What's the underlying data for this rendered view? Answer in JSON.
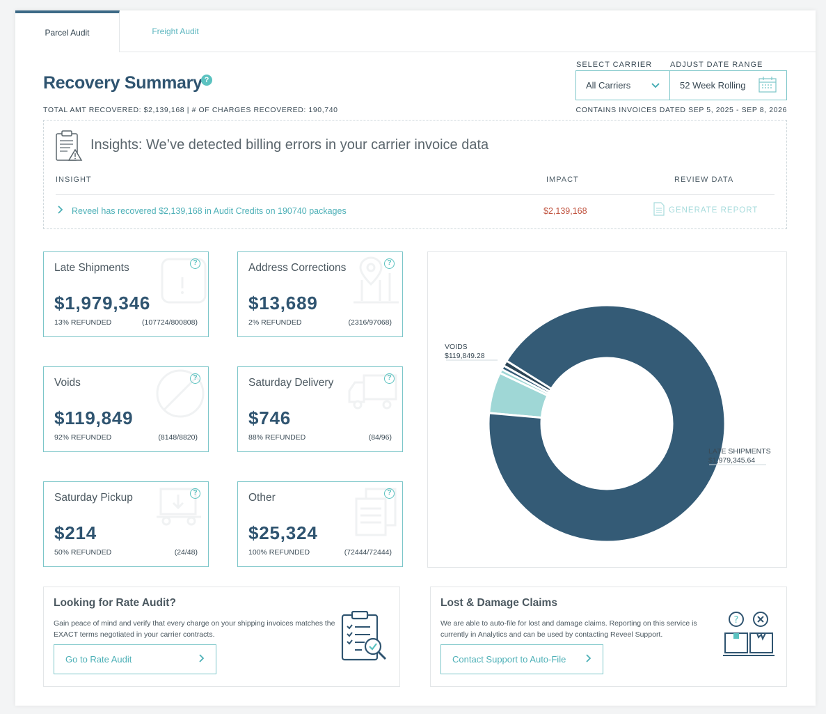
{
  "tabs": [
    {
      "label": "Parcel Audit",
      "active": true
    },
    {
      "label": "Freight Audit",
      "active": false
    }
  ],
  "header": {
    "title": "Recovery Summary",
    "help": "?",
    "carrier_label": "SELECT CARRIER",
    "carrier_value": "All Carriers",
    "range_label": "ADJUST DATE RANGE",
    "range_value": "52 Week Rolling",
    "totals": "TOTAL AMT RECOVERED: $2,139,168 | # OF CHARGES RECOVERED: 190,740",
    "dates": "CONTAINS INVOICES DATED SEP 5, 2025 - SEP 8, 2026"
  },
  "insights": {
    "title": "Insights: We’ve detected billing errors in your carrier invoice data",
    "col_insight": "INSIGHT",
    "col_impact": "IMPACT",
    "col_review": "REVIEW DATA",
    "row_text": "Reveel has recovered $2,139,168 in Audit Credits on 190740 packages",
    "row_impact": "$2,139,168",
    "row_action": "GENERATE REPORT"
  },
  "metrics": [
    {
      "title": "Late Shipments",
      "value": "$1,979,346",
      "pct": "13% REFUNDED",
      "ratio": "(107724/800808)",
      "icon": "calendar-alert-icon"
    },
    {
      "title": "Address Corrections",
      "value": "$13,689",
      "pct": "2% REFUNDED",
      "ratio": "(2316/97068)",
      "icon": "map-pin-icon"
    },
    {
      "title": "Voids",
      "value": "$119,849",
      "pct": "92% REFUNDED",
      "ratio": "(8148/8820)",
      "icon": "void-circle-icon"
    },
    {
      "title": "Saturday Delivery",
      "value": "$746",
      "pct": "88% REFUNDED",
      "ratio": "(84/96)",
      "icon": "truck-icon"
    },
    {
      "title": "Saturday Pickup",
      "value": "$214",
      "pct": "50% REFUNDED",
      "ratio": "(24/48)",
      "icon": "cart-icon"
    },
    {
      "title": "Other",
      "value": "$25,324",
      "pct": "100% REFUNDED",
      "ratio": "(72444/72444)",
      "icon": "documents-icon"
    }
  ],
  "chart_data": {
    "type": "pie",
    "slices": [
      {
        "label": "LATE SHIPMENTS",
        "value": 1979345.64,
        "color": "#345b76"
      },
      {
        "label": "VOIDS",
        "value": 119849.28,
        "color": "#9fd7d6"
      },
      {
        "label": "",
        "value": 25324,
        "color": "#2c4556"
      },
      {
        "label": "",
        "value": 13689,
        "color": "#6fc8cb"
      },
      {
        "label": "",
        "value": 746,
        "color": "#345b76"
      },
      {
        "label": "",
        "value": 214,
        "color": "#9fd7d6"
      }
    ],
    "labels_shown": [
      {
        "name": "VOIDS",
        "value": "$119,849.28"
      },
      {
        "name": "LATE SHIPMENTS",
        "value": "$1,979,345.64"
      }
    ]
  },
  "panels": {
    "rate": {
      "title": "Looking for Rate Audit?",
      "desc": "Gain peace of mind and verify that every charge on your shipping invoices matches the EXACT terms negotiated in your carrier contracts.",
      "button": "Go to Rate Audit"
    },
    "claims": {
      "title": "Lost & Damage Claims",
      "desc": "We are able to auto-file for lost and damage claims. Reporting on this service is currently in Analytics and can be used by contacting Reveel Support.",
      "button": "Contact Support to Auto-File"
    }
  },
  "colors": {
    "accent": "#5bc2c0",
    "primary": "#2f5470",
    "impact": "#c0533f"
  }
}
